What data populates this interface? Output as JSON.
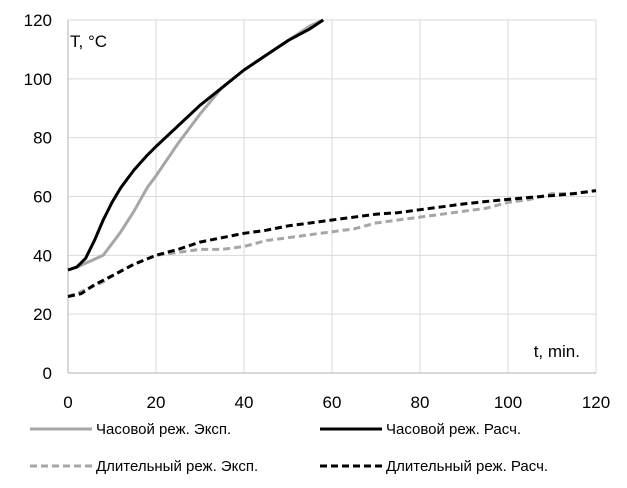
{
  "chart_data": {
    "type": "line",
    "title": "",
    "xlabel": "t, min.",
    "ylabel": "T, °C",
    "xlim": [
      0,
      120
    ],
    "ylim": [
      0,
      120
    ],
    "x_ticks": [
      0,
      20,
      40,
      60,
      80,
      100,
      120
    ],
    "y_ticks": [
      0,
      20,
      40,
      60,
      80,
      100,
      120
    ],
    "x_tick_labels": [
      "0",
      "20",
      "40",
      "60",
      "80",
      "100",
      "120"
    ],
    "y_tick_labels": [
      "0",
      "20",
      "40",
      "60",
      "80",
      "100",
      "120"
    ],
    "grid": "both",
    "legend_position": "bottom",
    "series": [
      {
        "name": "Часовой реж. Эксп.",
        "color": "#a6a6a6",
        "style": "solid",
        "points": [
          [
            0,
            35
          ],
          [
            2,
            36
          ],
          [
            5,
            38
          ],
          [
            8,
            40
          ],
          [
            10,
            44
          ],
          [
            12,
            48
          ],
          [
            15,
            55
          ],
          [
            18,
            63
          ],
          [
            20,
            67
          ],
          [
            25,
            78
          ],
          [
            30,
            88
          ],
          [
            35,
            97
          ],
          [
            40,
            103
          ],
          [
            45,
            108
          ],
          [
            50,
            113
          ],
          [
            55,
            118
          ],
          [
            58,
            120
          ]
        ]
      },
      {
        "name": "Часовой реж. Расч.",
        "color": "#000000",
        "style": "solid",
        "points": [
          [
            0,
            35
          ],
          [
            2,
            36
          ],
          [
            4,
            39
          ],
          [
            6,
            45
          ],
          [
            8,
            52
          ],
          [
            10,
            58
          ],
          [
            12,
            63
          ],
          [
            15,
            69
          ],
          [
            18,
            74
          ],
          [
            20,
            77
          ],
          [
            25,
            84
          ],
          [
            30,
            91
          ],
          [
            35,
            97
          ],
          [
            40,
            103
          ],
          [
            45,
            108
          ],
          [
            50,
            113
          ],
          [
            55,
            117
          ],
          [
            58,
            120
          ]
        ]
      },
      {
        "name": "Длительный реж. Эксп.",
        "color": "#a6a6a6",
        "style": "dashed",
        "points": [
          [
            0,
            26
          ],
          [
            2,
            27
          ],
          [
            5,
            29
          ],
          [
            8,
            31
          ],
          [
            10,
            33
          ],
          [
            15,
            37
          ],
          [
            20,
            40
          ],
          [
            25,
            41
          ],
          [
            30,
            42
          ],
          [
            35,
            42
          ],
          [
            40,
            43
          ],
          [
            45,
            45
          ],
          [
            50,
            46
          ],
          [
            55,
            47
          ],
          [
            60,
            48
          ],
          [
            65,
            49
          ],
          [
            70,
            51
          ],
          [
            75,
            52
          ],
          [
            80,
            53
          ],
          [
            85,
            54
          ],
          [
            90,
            55
          ],
          [
            95,
            56
          ],
          [
            100,
            58
          ],
          [
            105,
            59
          ],
          [
            110,
            61
          ],
          [
            115,
            61
          ],
          [
            120,
            62
          ]
        ]
      },
      {
        "name": "Длительный реж. Расч.",
        "color": "#000000",
        "style": "dashed",
        "points": [
          [
            0,
            26
          ],
          [
            3,
            27
          ],
          [
            6,
            30
          ],
          [
            10,
            33
          ],
          [
            15,
            37
          ],
          [
            20,
            40
          ],
          [
            25,
            42
          ],
          [
            30,
            44.5
          ],
          [
            35,
            46
          ],
          [
            40,
            47.5
          ],
          [
            45,
            48.5
          ],
          [
            50,
            50
          ],
          [
            55,
            51
          ],
          [
            60,
            52
          ],
          [
            65,
            53
          ],
          [
            70,
            54
          ],
          [
            75,
            54.5
          ],
          [
            80,
            55.5
          ],
          [
            85,
            56.5
          ],
          [
            90,
            57.5
          ],
          [
            95,
            58.3
          ],
          [
            100,
            59
          ],
          [
            105,
            59.7
          ],
          [
            110,
            60.3
          ],
          [
            115,
            61
          ],
          [
            120,
            62
          ]
        ]
      }
    ]
  }
}
